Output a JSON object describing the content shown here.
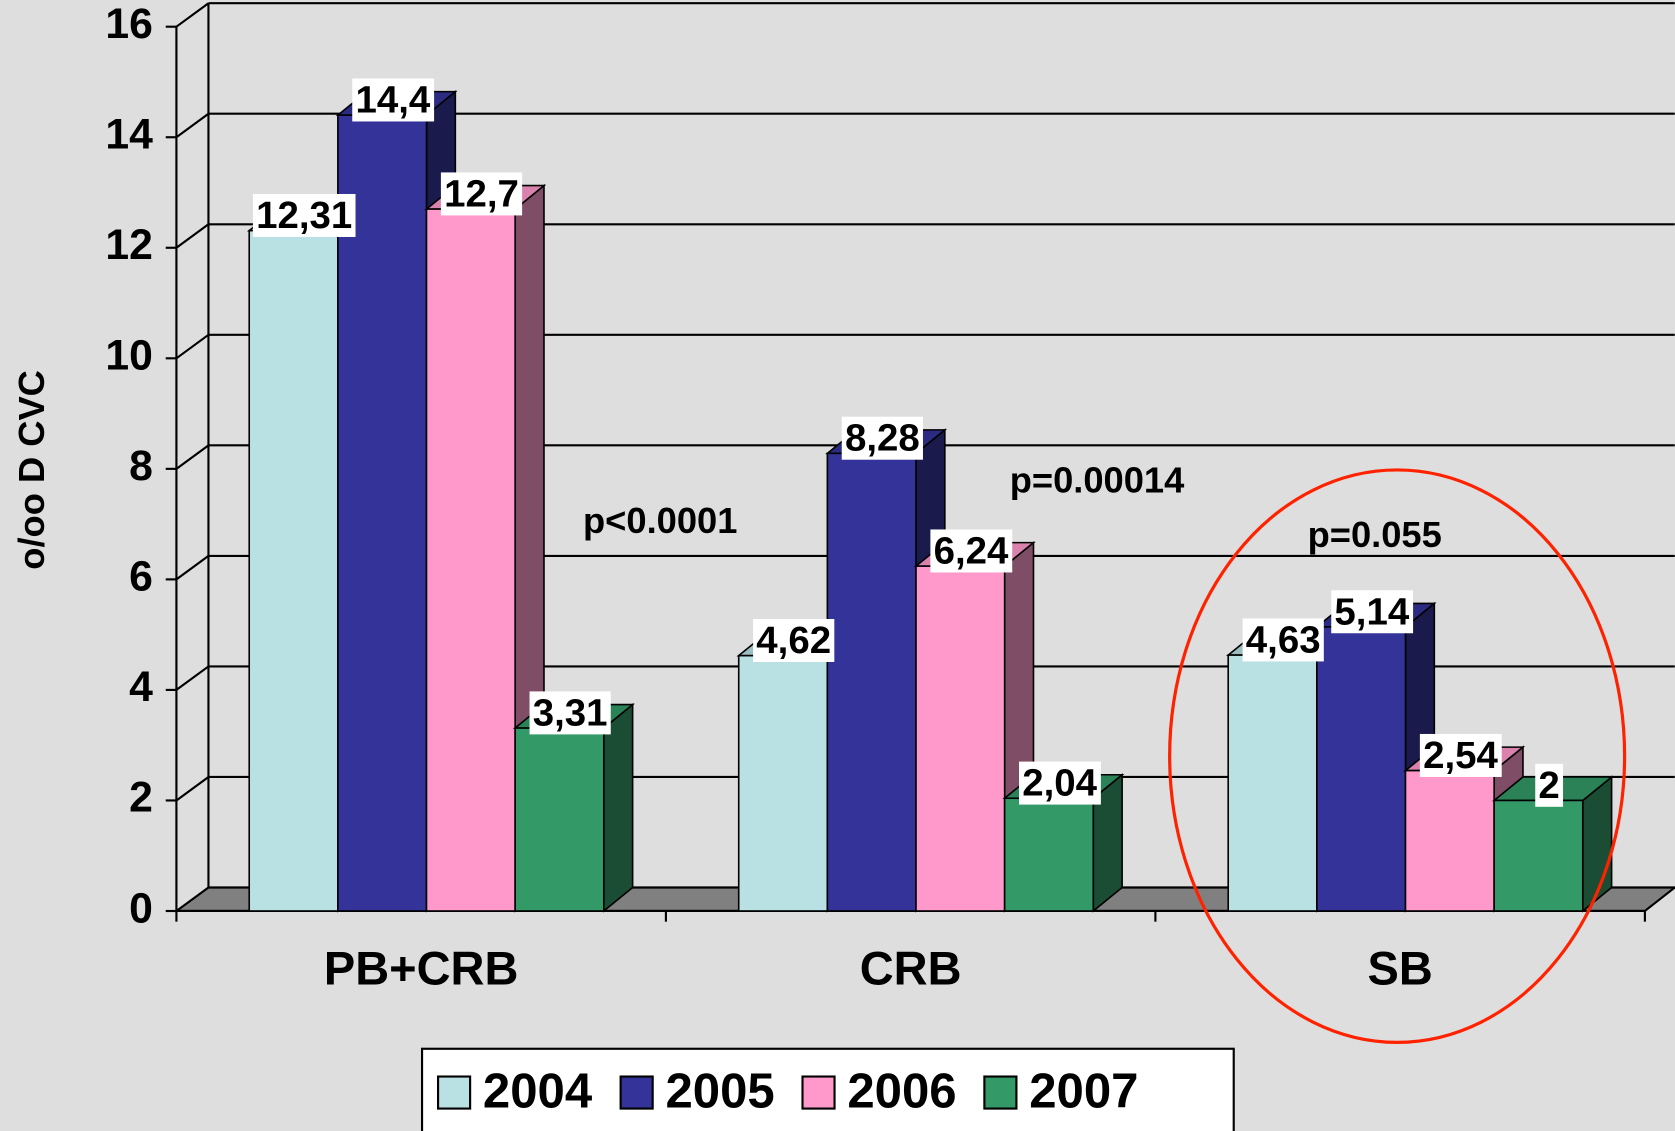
{
  "chart_data": {
    "type": "bar3d",
    "y_label": "o/oo D CVC",
    "categories": [
      "PB+CRB",
      "CRB",
      "SB"
    ],
    "series": [
      {
        "name": "2004",
        "color": "#b9e0e3",
        "values": [
          12.31,
          4.62,
          4.63
        ],
        "value_labels": [
          "12,31",
          "4,62",
          "4,63"
        ]
      },
      {
        "name": "2005",
        "color": "#333399",
        "values": [
          14.4,
          8.28,
          5.14
        ],
        "value_labels": [
          "14,4",
          "8,28",
          "5,14"
        ]
      },
      {
        "name": "2006",
        "color": "#ff99cc",
        "values": [
          12.7,
          6.24,
          2.54
        ],
        "value_labels": [
          "12,7",
          "6,24",
          "2,54"
        ]
      },
      {
        "name": "2007",
        "color": "#339966",
        "values": [
          3.31,
          2.04,
          2
        ],
        "value_labels": [
          "3,31",
          "2,04",
          "2"
        ]
      }
    ],
    "annotations": [
      "p<0.0001",
      "p=0.00014",
      "p=0.055"
    ],
    "ylim": [
      0,
      16
    ],
    "yticks": [
      0,
      2,
      4,
      6,
      8,
      10,
      12,
      14,
      16
    ],
    "grid": true,
    "legend": "bottom"
  }
}
